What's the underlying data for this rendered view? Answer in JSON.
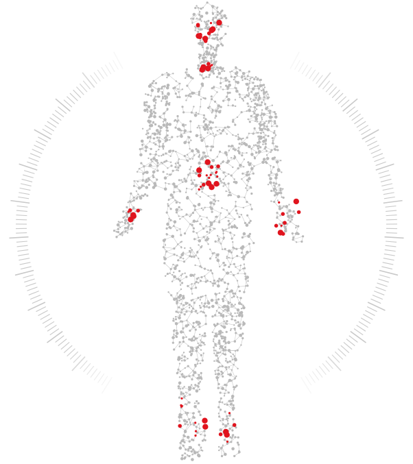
{
  "colors": {
    "background": "#ffffff",
    "dial_tick": "#c8c8c8",
    "network_node": "#b9b9b9",
    "network_edge": "#c9c9c9",
    "highlight_node": "#e0141e"
  },
  "figure": {
    "subject": "human-body-node-network",
    "dial": {
      "present": true,
      "ticks_per_side": 88,
      "major_tick_every": 8
    },
    "highlight_regions": [
      {
        "name": "head",
        "node_count": 14
      },
      {
        "name": "neck",
        "node_count": 7
      },
      {
        "name": "abdomen",
        "node_count": 18
      },
      {
        "name": "left-hand",
        "node_count": 6
      },
      {
        "name": "right-hand",
        "node_count": 9
      },
      {
        "name": "left-foot",
        "node_count": 10
      },
      {
        "name": "right-foot",
        "node_count": 6
      }
    ]
  }
}
